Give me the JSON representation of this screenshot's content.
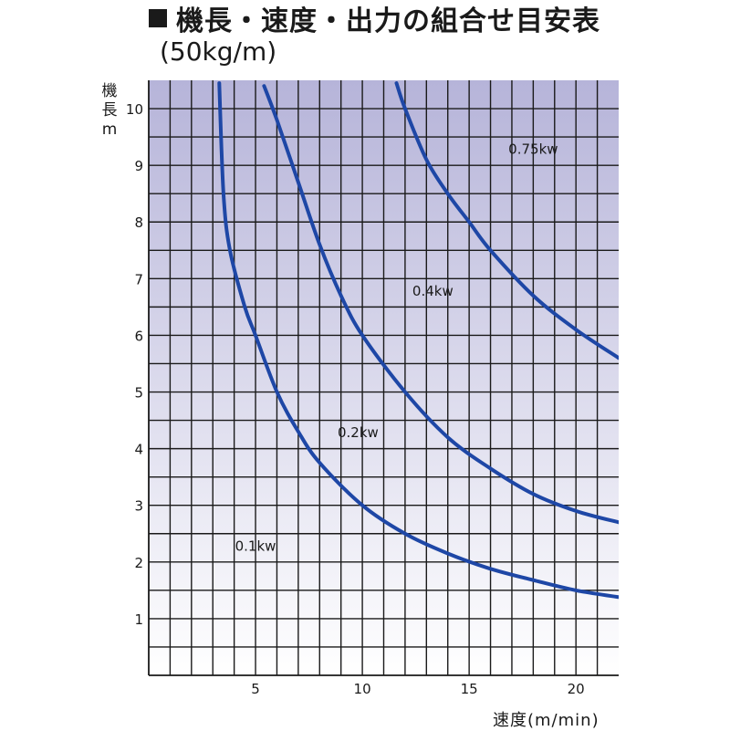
{
  "header": {
    "title": "機長・速度・出力の組合せ目安表",
    "subtitle": "(50kg/m)"
  },
  "axes": {
    "ylabel_chars": [
      "機",
      "長",
      "m"
    ],
    "xlabel": "速度(m/min)"
  },
  "colors": {
    "curve": "#1e47a6",
    "grid": "#1a1a1a",
    "gradient_top": "#b6b4d9",
    "gradient_bottom": "#ffffff"
  },
  "chart_data": {
    "type": "line",
    "title": "機長・速度・出力の組合せ目安表",
    "subtitle": "(50kg/m)",
    "xlabel": "速度(m/min)",
    "ylabel": "機長 m",
    "xlim": [
      0,
      22
    ],
    "ylim": [
      0,
      10.5
    ],
    "x_ticks": [
      5,
      10,
      15,
      20
    ],
    "y_ticks": [
      1,
      2,
      3,
      4,
      5,
      6,
      7,
      8,
      9,
      10
    ],
    "grid": true,
    "series": [
      {
        "name": "0.1kw",
        "points": [
          [
            3.3,
            10.45
          ],
          [
            3.5,
            8.5
          ],
          [
            3.8,
            7.5
          ],
          [
            4.5,
            6.5
          ],
          [
            5.0,
            6.0
          ],
          [
            6.0,
            5.0
          ],
          [
            7.0,
            4.3
          ],
          [
            8.0,
            3.75
          ],
          [
            10.0,
            3.0
          ],
          [
            12.0,
            2.5
          ],
          [
            14.0,
            2.15
          ],
          [
            16.0,
            1.88
          ],
          [
            18.0,
            1.68
          ],
          [
            20.0,
            1.5
          ],
          [
            22.0,
            1.38
          ]
        ]
      },
      {
        "name": "0.2kw",
        "points": [
          [
            5.4,
            10.4
          ],
          [
            6.0,
            9.8
          ],
          [
            7.0,
            8.7
          ],
          [
            8.0,
            7.6
          ],
          [
            9.0,
            6.7
          ],
          [
            10.0,
            6.0
          ],
          [
            12.0,
            5.0
          ],
          [
            14.0,
            4.2
          ],
          [
            16.0,
            3.65
          ],
          [
            18.0,
            3.2
          ],
          [
            20.0,
            2.9
          ],
          [
            22.0,
            2.7
          ]
        ]
      },
      {
        "name": "0.4kw",
        "points": [
          [
            11.6,
            10.45
          ],
          [
            12.0,
            10.0
          ],
          [
            13.0,
            9.1
          ],
          [
            14.0,
            8.5
          ],
          [
            15.0,
            8.0
          ],
          [
            16.0,
            7.5
          ],
          [
            18.0,
            6.7
          ],
          [
            20.0,
            6.1
          ],
          [
            22.0,
            5.6
          ]
        ]
      }
    ],
    "annotations": [
      {
        "text": "0.75kw",
        "x": 18.0,
        "y": 9.2
      },
      {
        "text": "0.4kw",
        "x": 13.3,
        "y": 6.7
      },
      {
        "text": "0.2kw",
        "x": 9.8,
        "y": 4.2
      },
      {
        "text": "0.1kw",
        "x": 5.0,
        "y": 2.2
      }
    ]
  }
}
